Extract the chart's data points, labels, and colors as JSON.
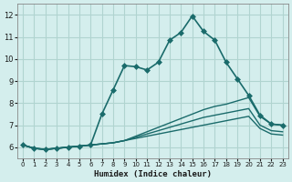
{
  "xlabel": "Humidex (Indice chaleur)",
  "background_color": "#d4eeed",
  "grid_color": "#b0d4d0",
  "line_color": "#1a6b6b",
  "xlim": [
    -0.5,
    23.5
  ],
  "ylim": [
    5.5,
    12.5
  ],
  "yticks": [
    6,
    7,
    8,
    9,
    10,
    11,
    12
  ],
  "xticks": [
    0,
    1,
    2,
    3,
    4,
    5,
    6,
    7,
    8,
    9,
    10,
    11,
    12,
    13,
    14,
    15,
    16,
    17,
    18,
    19,
    20,
    21,
    22,
    23
  ],
  "series": [
    {
      "x": [
        0,
        1,
        2,
        3,
        4,
        5,
        6,
        7,
        8,
        9,
        10,
        11,
        12,
        13,
        14,
        15,
        16,
        17,
        18,
        19,
        20,
        21,
        22,
        23
      ],
      "y": [
        6.1,
        5.95,
        5.9,
        5.95,
        6.0,
        6.05,
        6.1,
        7.5,
        8.6,
        9.7,
        9.65,
        9.5,
        9.85,
        10.85,
        11.2,
        11.95,
        11.25,
        10.85,
        9.85,
        9.1,
        8.35,
        7.45,
        7.05,
        7.0
      ],
      "marker": "D",
      "markersize": 3,
      "linewidth": 1.2
    },
    {
      "x": [
        0,
        1,
        2,
        3,
        4,
        5,
        6,
        7,
        8,
        9,
        10,
        11,
        12,
        13,
        14,
        15,
        16,
        17,
        18,
        19,
        20,
        21,
        22,
        23
      ],
      "y": [
        6.1,
        5.95,
        5.9,
        5.95,
        6.0,
        6.05,
        6.1,
        6.15,
        6.2,
        6.3,
        6.5,
        6.7,
        6.9,
        7.1,
        7.3,
        7.5,
        7.7,
        7.85,
        7.95,
        8.1,
        8.25,
        7.4,
        7.05,
        7.0
      ],
      "marker": null,
      "markersize": 0,
      "linewidth": 1.0
    },
    {
      "x": [
        0,
        1,
        2,
        3,
        4,
        5,
        6,
        7,
        8,
        9,
        10,
        11,
        12,
        13,
        14,
        15,
        16,
        17,
        18,
        19,
        20,
        21,
        22,
        23
      ],
      "y": [
        6.1,
        5.95,
        5.9,
        5.95,
        6.0,
        6.05,
        6.1,
        6.15,
        6.2,
        6.3,
        6.45,
        6.6,
        6.75,
        6.9,
        7.05,
        7.2,
        7.35,
        7.45,
        7.55,
        7.65,
        7.75,
        7.0,
        6.75,
        6.7
      ],
      "marker": null,
      "markersize": 0,
      "linewidth": 1.0
    },
    {
      "x": [
        0,
        1,
        2,
        3,
        4,
        5,
        6,
        7,
        8,
        9,
        10,
        11,
        12,
        13,
        14,
        15,
        16,
        17,
        18,
        19,
        20,
        21,
        22,
        23
      ],
      "y": [
        6.1,
        5.95,
        5.9,
        5.95,
        6.0,
        6.05,
        6.1,
        6.15,
        6.2,
        6.3,
        6.4,
        6.5,
        6.6,
        6.7,
        6.8,
        6.9,
        7.0,
        7.1,
        7.2,
        7.3,
        7.4,
        6.85,
        6.6,
        6.55
      ],
      "marker": null,
      "markersize": 0,
      "linewidth": 1.0
    }
  ]
}
